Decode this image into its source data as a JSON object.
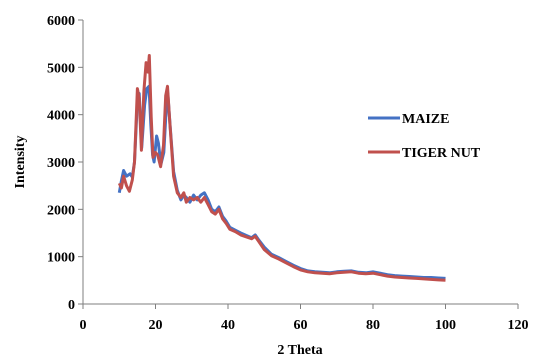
{
  "chart_data": {
    "type": "line",
    "xlabel": "2 Theta",
    "ylabel": "Intensity",
    "xlim": [
      0,
      120
    ],
    "ylim": [
      0,
      6000
    ],
    "x_ticks": [
      0,
      20,
      40,
      60,
      80,
      100,
      120
    ],
    "y_ticks": [
      0,
      1000,
      2000,
      3000,
      4000,
      5000,
      6000
    ],
    "grid": false,
    "legend_position": "right",
    "series": [
      {
        "name": "MAIZE",
        "color": "#4472C4",
        "points": [
          [
            10,
            2350
          ],
          [
            10.6,
            2600
          ],
          [
            11.2,
            2820
          ],
          [
            12,
            2700
          ],
          [
            13,
            2750
          ],
          [
            13.6,
            2680
          ],
          [
            14.2,
            3000
          ],
          [
            15,
            4300
          ],
          [
            15.5,
            4450
          ],
          [
            16.2,
            3300
          ],
          [
            17,
            4200
          ],
          [
            17.6,
            4550
          ],
          [
            18.2,
            4600
          ],
          [
            18.7,
            3800
          ],
          [
            19.2,
            3150
          ],
          [
            19.6,
            3000
          ],
          [
            20.3,
            3550
          ],
          [
            20.8,
            3400
          ],
          [
            21.5,
            2950
          ],
          [
            22.3,
            3200
          ],
          [
            23,
            4200
          ],
          [
            23.4,
            4450
          ],
          [
            24,
            3800
          ],
          [
            25,
            2800
          ],
          [
            26,
            2400
          ],
          [
            27,
            2200
          ],
          [
            27.8,
            2300
          ],
          [
            28.5,
            2250
          ],
          [
            29.5,
            2150
          ],
          [
            30.5,
            2300
          ],
          [
            31.5,
            2200
          ],
          [
            32.5,
            2300
          ],
          [
            33.5,
            2350
          ],
          [
            34.5,
            2200
          ],
          [
            35.5,
            2000
          ],
          [
            36.5,
            1950
          ],
          [
            37.5,
            2050
          ],
          [
            38.5,
            1850
          ],
          [
            39.5,
            1750
          ],
          [
            40.5,
            1620
          ],
          [
            42,
            1560
          ],
          [
            43.5,
            1500
          ],
          [
            45,
            1450
          ],
          [
            46.5,
            1400
          ],
          [
            47.5,
            1460
          ],
          [
            48.5,
            1350
          ],
          [
            50,
            1200
          ],
          [
            52,
            1050
          ],
          [
            54,
            980
          ],
          [
            56,
            900
          ],
          [
            58,
            820
          ],
          [
            60,
            750
          ],
          [
            62,
            700
          ],
          [
            64,
            680
          ],
          [
            66,
            670
          ],
          [
            68,
            660
          ],
          [
            70,
            680
          ],
          [
            72,
            690
          ],
          [
            74,
            700
          ],
          [
            76,
            670
          ],
          [
            78,
            660
          ],
          [
            80,
            680
          ],
          [
            82,
            650
          ],
          [
            84,
            620
          ],
          [
            86,
            600
          ],
          [
            88,
            590
          ],
          [
            90,
            580
          ],
          [
            92,
            570
          ],
          [
            94,
            560
          ],
          [
            96,
            560
          ],
          [
            98,
            550
          ],
          [
            100,
            540
          ]
        ]
      },
      {
        "name": "TIGER NUT",
        "color": "#C0504D",
        "points": [
          [
            10,
            2550
          ],
          [
            10.6,
            2450
          ],
          [
            11.2,
            2700
          ],
          [
            12,
            2500
          ],
          [
            12.8,
            2380
          ],
          [
            13.6,
            2620
          ],
          [
            14.2,
            3000
          ],
          [
            15,
            4550
          ],
          [
            15.5,
            4350
          ],
          [
            16.1,
            3250
          ],
          [
            16.8,
            4500
          ],
          [
            17.4,
            5100
          ],
          [
            17.9,
            4900
          ],
          [
            18.3,
            5250
          ],
          [
            18.8,
            3950
          ],
          [
            19.3,
            3100
          ],
          [
            20,
            3200
          ],
          [
            20.6,
            3150
          ],
          [
            21.4,
            2900
          ],
          [
            22.2,
            3350
          ],
          [
            22.8,
            4400
          ],
          [
            23.3,
            4600
          ],
          [
            23.9,
            3900
          ],
          [
            25,
            2700
          ],
          [
            26,
            2350
          ],
          [
            27,
            2250
          ],
          [
            27.8,
            2350
          ],
          [
            28.5,
            2150
          ],
          [
            29.5,
            2250
          ],
          [
            30.5,
            2200
          ],
          [
            31.5,
            2250
          ],
          [
            32.5,
            2150
          ],
          [
            33.5,
            2250
          ],
          [
            34.5,
            2100
          ],
          [
            35.5,
            1950
          ],
          [
            36.5,
            1900
          ],
          [
            37.5,
            2000
          ],
          [
            38.5,
            1800
          ],
          [
            39.5,
            1700
          ],
          [
            40.5,
            1580
          ],
          [
            42,
            1530
          ],
          [
            43.5,
            1460
          ],
          [
            45,
            1420
          ],
          [
            46.5,
            1380
          ],
          [
            47.5,
            1430
          ],
          [
            48.5,
            1320
          ],
          [
            50,
            1150
          ],
          [
            52,
            1020
          ],
          [
            54,
            950
          ],
          [
            56,
            870
          ],
          [
            58,
            790
          ],
          [
            60,
            720
          ],
          [
            62,
            680
          ],
          [
            64,
            660
          ],
          [
            66,
            650
          ],
          [
            68,
            640
          ],
          [
            70,
            660
          ],
          [
            72,
            670
          ],
          [
            74,
            680
          ],
          [
            76,
            650
          ],
          [
            78,
            640
          ],
          [
            80,
            650
          ],
          [
            82,
            620
          ],
          [
            84,
            590
          ],
          [
            86,
            570
          ],
          [
            88,
            560
          ],
          [
            90,
            550
          ],
          [
            92,
            540
          ],
          [
            94,
            530
          ],
          [
            96,
            520
          ],
          [
            98,
            510
          ],
          [
            100,
            500
          ]
        ]
      }
    ]
  }
}
